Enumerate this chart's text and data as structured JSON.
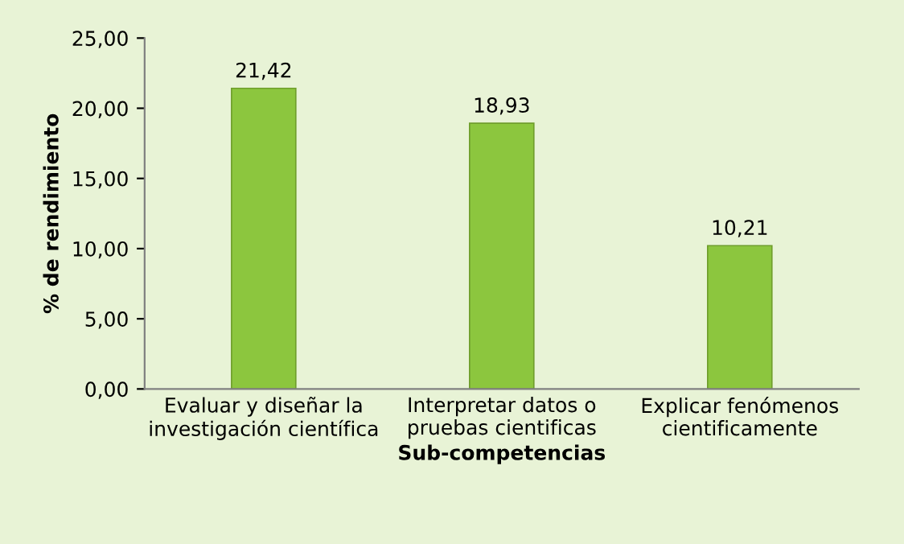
{
  "chart_data": {
    "type": "bar",
    "ylabel": "% de rendimiento",
    "xlabel": "Sub-competencias",
    "categories": [
      "Evaluar y diseñar la\ninvestigación científica",
      "Interpretar datos o\npruebas cientificas",
      "Explicar fenómenos\ncientificamente"
    ],
    "values": [
      21.42,
      18.93,
      10.21
    ],
    "value_labels": [
      "21,42",
      "18,93",
      "10,21"
    ],
    "color": "#8cc63e",
    "ylim": [
      0,
      25
    ],
    "yticks": [
      {
        "value": 0,
        "label": "0,00"
      },
      {
        "value": 5,
        "label": "5,00"
      },
      {
        "value": 10,
        "label": "10,00"
      },
      {
        "value": 15,
        "label": "15,00"
      },
      {
        "value": 20,
        "label": "20,00"
      },
      {
        "value": 25,
        "label": "25,00"
      }
    ],
    "grid": false
  }
}
